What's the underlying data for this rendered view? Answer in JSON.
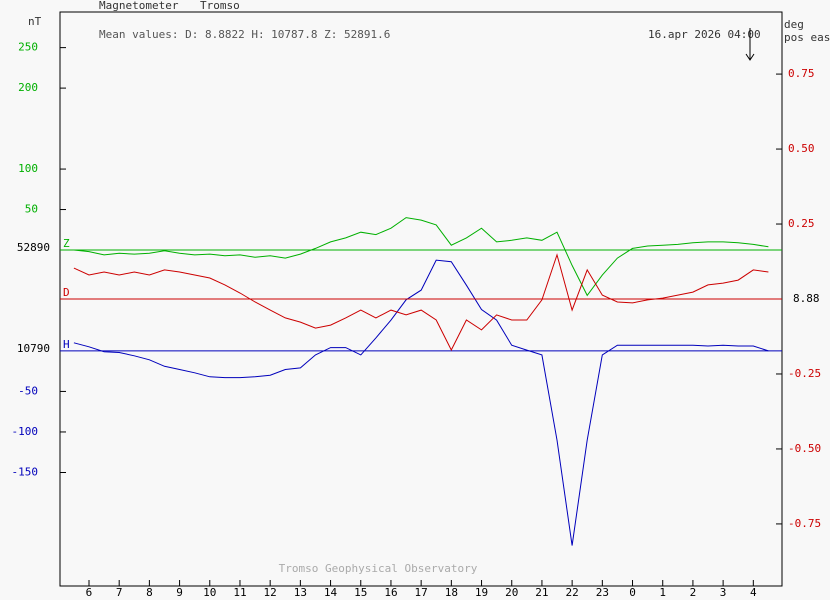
{
  "chart_data": {
    "type": "line",
    "title": "Magnetometer",
    "station": "Tromso",
    "subtitle": "Mean values:  D: 8.8822   H: 10787.8   Z: 52891.6",
    "timestamp": "16.apr 2026 04:00",
    "footer": "Tromso Geophysical Observatory",
    "ylabel": "nT",
    "y2label": [
      "deg",
      "pos east"
    ],
    "x": [
      5.5,
      6,
      6.5,
      7,
      7.5,
      8,
      8.5,
      9,
      9.5,
      10,
      10.5,
      11,
      11.5,
      12,
      12.5,
      13,
      13.5,
      14,
      14.5,
      15,
      15.5,
      16,
      16.5,
      17,
      17.5,
      18,
      18.5,
      19,
      19.5,
      20,
      20.5,
      21,
      21.5,
      22,
      22.5,
      23,
      23.5,
      24,
      24.5,
      25,
      25.5,
      26,
      26.5,
      27,
      27.5,
      28,
      28.5
    ],
    "xlim": [
      5.04,
      28.95
    ],
    "xticks": [
      6,
      7,
      8,
      9,
      10,
      11,
      12,
      13,
      14,
      15,
      16,
      17,
      18,
      19,
      20,
      21,
      22,
      23,
      {
        "value": 24,
        "label": "0"
      },
      {
        "value": 25,
        "label": "1"
      },
      {
        "value": 26,
        "label": "2"
      },
      {
        "value": 27,
        "label": "3"
      },
      {
        "value": 28,
        "label": "4"
      }
    ],
    "ylim": [
      -415,
      294
    ],
    "yticks": [
      50,
      100,
      200,
      250
    ],
    "y3lim": [
      -290,
      418
    ],
    "y3ticks": [
      -50,
      -100,
      -150
    ],
    "y2lim": [
      -0.957,
      0.957
    ],
    "y2ticks": [
      {
        "value": 0.75,
        "label": "0.75"
      },
      {
        "value": 0.5,
        "label": "0.50"
      },
      {
        "value": 0.25,
        "label": "0.25"
      },
      {
        "value": -0.25,
        "label": "-0.25"
      },
      {
        "value": -0.5,
        "label": "-0.50"
      },
      {
        "value": -0.75,
        "label": "-0.75"
      }
    ],
    "series": [
      {
        "name": "Z",
        "color": "#00b000",
        "axis": "y",
        "baseline_label": "52890",
        "values": [
          0,
          -2,
          -6,
          -4,
          -5,
          -4,
          -1,
          -4,
          -6,
          -5,
          -7,
          -6,
          -9,
          -7,
          -10,
          -5,
          2,
          10,
          15,
          22,
          19,
          27,
          40,
          37,
          31,
          6,
          15,
          27,
          10,
          12,
          15,
          12,
          22,
          -19,
          -56,
          -31,
          -10,
          2,
          5,
          6,
          7,
          9,
          10,
          10,
          9,
          7,
          4
        ]
      },
      {
        "name": "H",
        "color": "#0000bb",
        "axis": "y3",
        "baseline_label": "10790",
        "values": [
          10,
          5,
          -1,
          -2,
          -6,
          -11,
          -19,
          -23,
          -27,
          -32,
          -33,
          -33,
          -32,
          -30,
          -23,
          -21,
          -5,
          4,
          4,
          -5,
          16,
          38,
          63,
          75,
          112,
          110,
          81,
          51,
          38,
          7,
          1,
          -5,
          -110,
          -240,
          -110,
          -5,
          7,
          7,
          7,
          7,
          7,
          7,
          6,
          7,
          6,
          6,
          0
        ]
      },
      {
        "name": "D",
        "color": "#cc0000",
        "axis": "y2",
        "baseline_label": "8.88",
        "values": [
          0.103,
          0.08,
          0.09,
          0.08,
          0.09,
          0.08,
          0.097,
          0.09,
          0.08,
          0.07,
          0.047,
          0.02,
          -0.01,
          -0.037,
          -0.063,
          -0.077,
          -0.097,
          -0.087,
          -0.063,
          -0.037,
          -0.063,
          -0.037,
          -0.053,
          -0.037,
          -0.07,
          -0.17,
          -0.07,
          -0.103,
          -0.053,
          -0.07,
          -0.07,
          -0.003,
          0.147,
          -0.037,
          0.097,
          0.013,
          -0.01,
          -0.013,
          -0.003,
          0.003,
          0.013,
          0.023,
          0.047,
          0.053,
          0.063,
          0.097,
          0.09
        ]
      }
    ]
  }
}
